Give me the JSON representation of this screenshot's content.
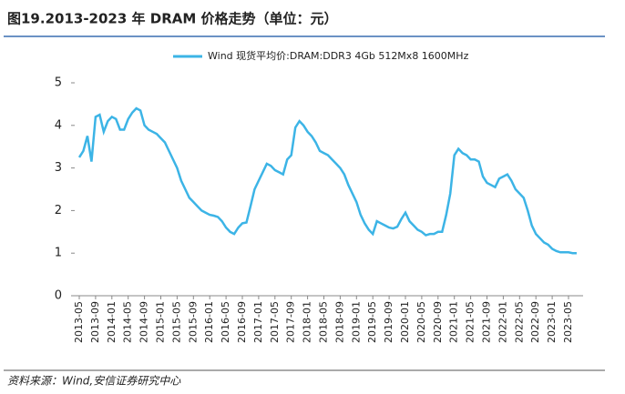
{
  "chart_data": {
    "type": "line",
    "title": "图19.2013-2023 年 DRAM 价格走势（单位：元）",
    "source": "资料来源：Wind,安信证券研究中心",
    "categories": [
      "2013-05",
      null,
      null,
      null,
      "2013-09",
      null,
      null,
      null,
      "2014-01",
      null,
      null,
      null,
      "2014-05",
      null,
      null,
      null,
      "2014-09",
      null,
      null,
      null,
      "2015-01",
      null,
      null,
      null,
      "2015-05",
      null,
      null,
      null,
      "2015-09",
      null,
      null,
      null,
      "2016-01",
      null,
      null,
      null,
      "2016-05",
      null,
      null,
      null,
      "2016-09",
      null,
      null,
      null,
      "2017-01",
      null,
      null,
      null,
      "2017-05",
      null,
      null,
      null,
      "2017-09",
      null,
      null,
      null,
      "2018-01",
      null,
      null,
      null,
      "2018-05",
      null,
      null,
      null,
      "2018-09",
      null,
      null,
      null,
      "2019-01",
      null,
      null,
      null,
      "2019-05",
      null,
      null,
      null,
      "2019-09",
      null,
      null,
      null,
      "2020-01",
      null,
      null,
      null,
      "2020-05",
      null,
      null,
      null,
      "2020-09",
      null,
      null,
      null,
      "2021-01",
      null,
      null,
      null,
      "2021-05",
      null,
      null,
      null,
      "2021-09",
      null,
      null,
      null,
      "2022-01",
      null,
      null,
      null,
      "2022-05",
      null,
      null,
      null,
      "2022-09",
      null,
      null,
      null,
      "2023-01",
      null,
      null,
      null,
      "2023-05",
      null,
      null
    ],
    "series": [
      {
        "name": "Wind 现货平均价:DRAM:DDR3 4Gb 512Mx8 1600MHz",
        "color": "#3cb4e6",
        "values": [
          3.25,
          3.4,
          3.75,
          3.15,
          4.2,
          4.25,
          3.85,
          4.1,
          4.2,
          4.15,
          3.9,
          3.9,
          4.15,
          4.3,
          4.4,
          4.35,
          4.0,
          3.9,
          3.85,
          3.8,
          3.7,
          3.6,
          3.4,
          3.2,
          3.0,
          2.7,
          2.5,
          2.3,
          2.2,
          2.1,
          2.0,
          1.95,
          1.9,
          1.88,
          1.85,
          1.75,
          1.6,
          1.5,
          1.45,
          1.6,
          1.7,
          1.72,
          2.1,
          2.5,
          2.7,
          2.9,
          3.1,
          3.05,
          2.95,
          2.9,
          2.85,
          3.2,
          3.3,
          3.95,
          4.1,
          4.0,
          3.85,
          3.75,
          3.6,
          3.4,
          3.35,
          3.3,
          3.2,
          3.1,
          3.0,
          2.85,
          2.6,
          2.4,
          2.2,
          1.9,
          1.7,
          1.55,
          1.45,
          1.75,
          1.7,
          1.65,
          1.6,
          1.58,
          1.62,
          1.8,
          1.95,
          1.75,
          1.65,
          1.55,
          1.5,
          1.42,
          1.45,
          1.45,
          1.5,
          1.5,
          1.9,
          2.4,
          3.3,
          3.45,
          3.35,
          3.3,
          3.2,
          3.2,
          3.15,
          2.8,
          2.65,
          2.6,
          2.55,
          2.75,
          2.8,
          2.85,
          2.7,
          2.5,
          2.4,
          2.3,
          2.0,
          1.65,
          1.45,
          1.35,
          1.25,
          1.2,
          1.1,
          1.05,
          1.02,
          1.02,
          1.02,
          1.0,
          1.0
        ]
      }
    ],
    "ylim": [
      0,
      5
    ],
    "yticks": [
      0,
      1,
      2,
      3,
      4,
      5
    ],
    "legend": "top"
  }
}
